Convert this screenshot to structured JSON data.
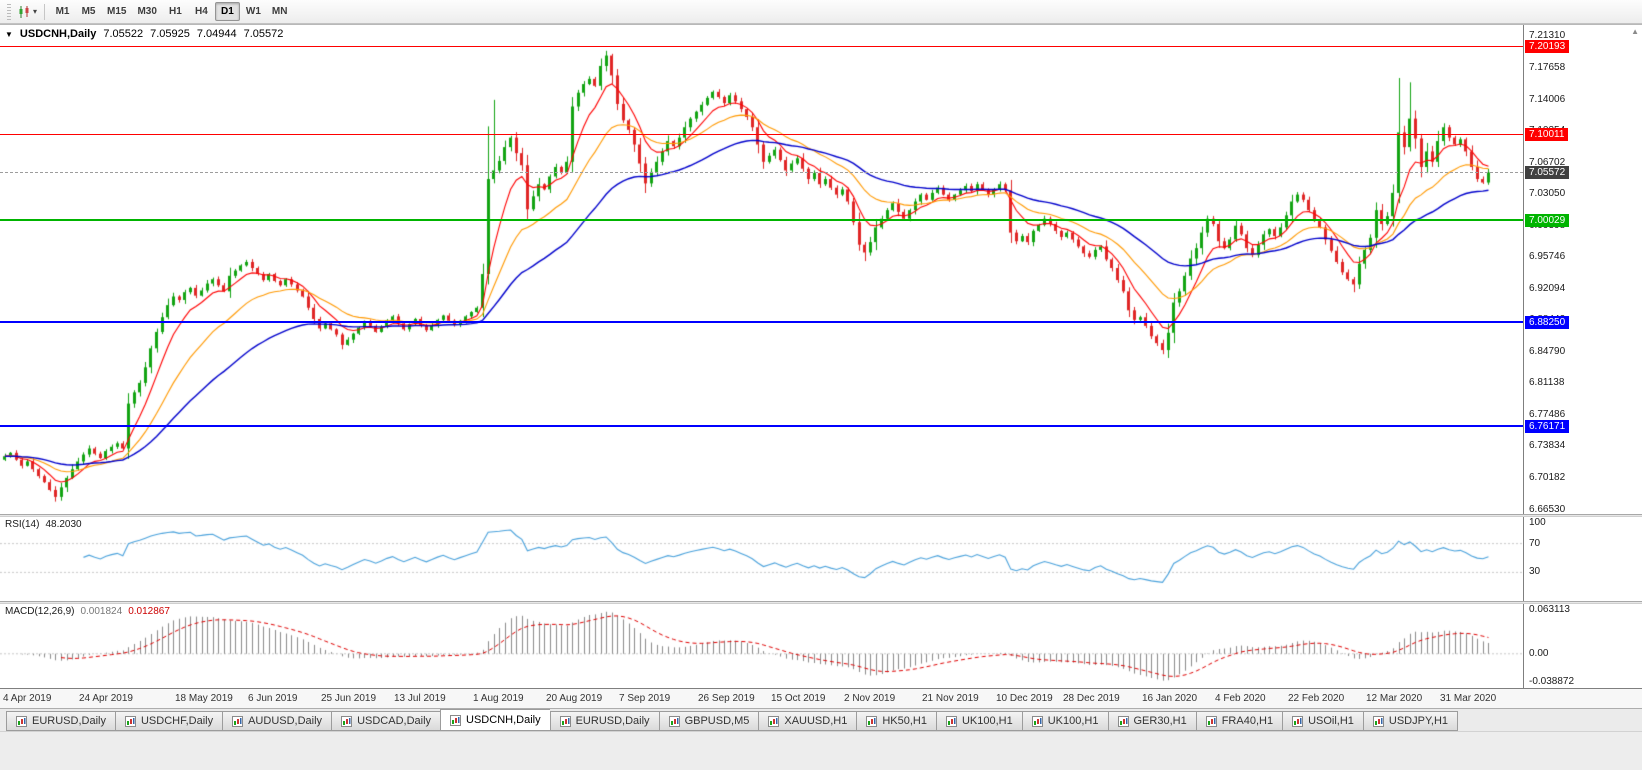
{
  "colors": {
    "candle_up": "#12a412",
    "candle_down": "#e02626",
    "ma_fast": "#ff0000",
    "ma_mid": "#ff9900",
    "ma_slow": "#0000cc",
    "rsi_line": "#4aa2dc",
    "rsi_level": "#c8c8c8",
    "macd_hist": "#8a8a8a",
    "macd_signal": "#e00000",
    "line_red": "#ff0000",
    "line_green": "#00b400",
    "line_blue": "#0000ff",
    "bid_tag": "#404040"
  },
  "icons": {
    "toolbar_chart": "candlestick-chart-icon",
    "toolbar_caret": "dropdown-caret-icon",
    "title_arrow": "collapse-arrow-icon",
    "tab_icon": "mini-chart-icon",
    "scroll_arrow": "chart-scroll-arrow-icon"
  },
  "toolbar": {
    "timeframes": [
      "M1",
      "M5",
      "M15",
      "M30",
      "H1",
      "H4",
      "D1",
      "W1",
      "MN"
    ],
    "active_timeframe": "D1"
  },
  "chart": {
    "title": {
      "arrow": "▼",
      "symbol": "USDCNH,Daily",
      "open": "7.05522",
      "high": "7.05925",
      "low": "7.04944",
      "close": "7.05572"
    },
    "price_axis": {
      "labels": [
        {
          "p": 7.2131,
          "t": "7.21310"
        },
        {
          "p": 7.17658,
          "t": "7.17658"
        },
        {
          "p": 7.14006,
          "t": "7.14006"
        },
        {
          "p": 7.10354,
          "t": "7.10354"
        },
        {
          "p": 7.06702,
          "t": "7.06702"
        },
        {
          "p": 7.0305,
          "t": "7.03050"
        },
        {
          "p": 6.99398,
          "t": "6.99398"
        },
        {
          "p": 6.95746,
          "t": "6.95746"
        },
        {
          "p": 6.92094,
          "t": "6.92094"
        },
        {
          "p": 6.88442,
          "t": "6.88442"
        },
        {
          "p": 6.8479,
          "t": "6.84790"
        },
        {
          "p": 6.81138,
          "t": "6.81138"
        },
        {
          "p": 6.77486,
          "t": "6.77486"
        },
        {
          "p": 6.73834,
          "t": "6.73834"
        },
        {
          "p": 6.70182,
          "t": "6.70182"
        },
        {
          "p": 6.6653,
          "t": "6.66530"
        }
      ]
    },
    "hlines": [
      {
        "price": 7.20193,
        "label": "7.20193",
        "color": "#ff0000",
        "thickness": 1
      },
      {
        "price": 7.10011,
        "label": "7.10011",
        "color": "#ff0000",
        "thickness": 1
      },
      {
        "price": 7.00029,
        "label": "7.00029",
        "color": "#00b400",
        "thickness": 2
      },
      {
        "price": 6.8825,
        "label": "6.88250",
        "color": "#0000ff",
        "thickness": 2
      },
      {
        "price": 6.76171,
        "label": "6.76171",
        "color": "#0000ff",
        "thickness": 2
      }
    ],
    "bid": {
      "price": 7.05572,
      "label": "7.05572"
    }
  },
  "rsi": {
    "label": "RSI(14)",
    "value": "48.2030",
    "levels": [
      {
        "label": "100",
        "value": 100
      },
      {
        "label": "70",
        "value": 70
      },
      {
        "label": "30",
        "value": 30
      }
    ]
  },
  "macd": {
    "label": "MACD(12,26,9)",
    "value_main": "0.001824",
    "value_signal": "0.012867",
    "axis": [
      {
        "label": "0.063113",
        "value": 0.063113
      },
      {
        "label": "0.00",
        "value": 0
      },
      {
        "label": "-0.038872",
        "value": -0.038872
      }
    ]
  },
  "date_axis": {
    "ticks": [
      {
        "i": 0,
        "label": "4 Apr 2019"
      },
      {
        "i": 14,
        "label": "24 Apr 2019"
      },
      {
        "i": 31,
        "label": "18 May 2019"
      },
      {
        "i": 44,
        "label": "6 Jun 2019"
      },
      {
        "i": 57,
        "label": "25 Jun 2019"
      },
      {
        "i": 70,
        "label": "13 Jul 2019"
      },
      {
        "i": 84,
        "label": "1 Aug 2019"
      },
      {
        "i": 97,
        "label": "20 Aug 2019"
      },
      {
        "i": 110,
        "label": "7 Sep 2019"
      },
      {
        "i": 124,
        "label": "26 Sep 2019"
      },
      {
        "i": 137,
        "label": "15 Oct 2019"
      },
      {
        "i": 150,
        "label": "2 Nov 2019"
      },
      {
        "i": 164,
        "label": "21 Nov 2019"
      },
      {
        "i": 177,
        "label": "10 Dec 2019"
      },
      {
        "i": 189,
        "label": "28 Dec 2019"
      },
      {
        "i": 203,
        "label": "16 Jan 2020"
      },
      {
        "i": 216,
        "label": "4 Feb 2020"
      },
      {
        "i": 229,
        "label": "22 Feb 2020"
      },
      {
        "i": 243,
        "label": "12 Mar 2020"
      },
      {
        "i": 256,
        "label": "31 Mar 2020"
      }
    ]
  },
  "tabs": [
    {
      "label": "EURUSD,Daily",
      "active": false
    },
    {
      "label": "USDCHF,Daily",
      "active": false
    },
    {
      "label": "AUDUSD,Daily",
      "active": false
    },
    {
      "label": "USDCAD,Daily",
      "active": false
    },
    {
      "label": "USDCNH,Daily",
      "active": true
    },
    {
      "label": "EURUSD,Daily",
      "active": false
    },
    {
      "label": "GBPUSD,M5",
      "active": false
    },
    {
      "label": "XAUUSD,H1",
      "active": false
    },
    {
      "label": "HK50,H1",
      "active": false
    },
    {
      "label": "UK100,H1",
      "active": false
    },
    {
      "label": "UK100,H1",
      "active": false
    },
    {
      "label": "GER30,H1",
      "active": false
    },
    {
      "label": "FRA40,H1",
      "active": false
    },
    {
      "label": "USOil,H1",
      "active": false
    },
    {
      "label": "USDJPY,H1",
      "active": false
    }
  ],
  "chart_data": {
    "type": "candlestick",
    "symbol": "USDCNH",
    "period": "Daily",
    "current_ohlc": [
      7.05522,
      7.05925,
      7.04944,
      7.05572
    ],
    "price_range": {
      "top": 7.2264,
      "bottom": 6.659
    },
    "indicators": {
      "rsi_period": 14,
      "macd": [
        12,
        26,
        9
      ]
    },
    "moving_averages": [
      {
        "period": 7,
        "color": "#ff0000"
      },
      {
        "period": 18,
        "color": "#ff9900"
      },
      {
        "period": 40,
        "color": "#0000cc"
      }
    ],
    "candles": {
      "first_open": 6.723,
      "closes": [
        6.727,
        6.731,
        6.723,
        6.716,
        6.721,
        6.712,
        6.704,
        6.697,
        6.688,
        6.68,
        6.691,
        6.702,
        6.712,
        6.721,
        6.729,
        6.736,
        6.73,
        6.725,
        6.733,
        6.738,
        6.742,
        6.736,
        6.788,
        6.801,
        6.812,
        6.83,
        6.852,
        6.871,
        6.888,
        6.902,
        6.912,
        6.908,
        6.917,
        6.922,
        6.913,
        6.919,
        6.927,
        6.932,
        6.925,
        6.918,
        6.936,
        6.942,
        6.948,
        6.952,
        6.945,
        6.938,
        6.931,
        6.938,
        6.93,
        6.925,
        6.932,
        6.926,
        6.919,
        6.912,
        6.899,
        6.886,
        6.875,
        6.881,
        6.874,
        6.868,
        6.856,
        6.862,
        6.869,
        6.876,
        6.883,
        6.878,
        6.871,
        6.877,
        6.884,
        6.889,
        6.881,
        6.874,
        6.88,
        6.886,
        6.879,
        6.873,
        6.879,
        6.885,
        6.89,
        6.884,
        6.879,
        6.884,
        6.889,
        6.894,
        6.899,
        6.938,
        7.048,
        7.058,
        7.069,
        7.085,
        7.096,
        7.078,
        7.064,
        7.013,
        7.028,
        7.042,
        7.036,
        7.051,
        7.062,
        7.056,
        7.068,
        7.132,
        7.148,
        7.158,
        7.164,
        7.156,
        7.179,
        7.191,
        7.168,
        7.135,
        7.116,
        7.105,
        7.088,
        7.066,
        7.043,
        7.056,
        7.068,
        7.08,
        7.092,
        7.086,
        7.096,
        7.108,
        7.118,
        7.126,
        7.134,
        7.142,
        7.149,
        7.143,
        7.136,
        7.145,
        7.138,
        7.129,
        7.12,
        7.108,
        7.088,
        7.068,
        7.075,
        7.082,
        7.07,
        7.058,
        7.066,
        7.072,
        7.06,
        7.048,
        7.055,
        7.042,
        7.048,
        7.038,
        7.03,
        7.036,
        7.022,
        6.998,
        6.972,
        6.963,
        6.975,
        6.992,
        7.002,
        7.012,
        7.02,
        7.01,
        7.002,
        7.012,
        7.022,
        7.03,
        7.024,
        7.032,
        7.038,
        7.03,
        7.024,
        7.03,
        7.035,
        7.04,
        7.034,
        7.042,
        7.036,
        7.03,
        7.036,
        7.042,
        7.035,
        6.986,
        6.976,
        6.982,
        6.975,
        6.988,
        6.995,
        7.002,
        6.996,
        6.988,
        6.981,
        6.986,
        6.978,
        6.97,
        6.962,
        6.958,
        6.966,
        6.97,
        6.955,
        6.945,
        6.931,
        6.918,
        6.896,
        6.885,
        6.888,
        6.878,
        6.866,
        6.858,
        6.85,
        6.87,
        6.905,
        6.918,
        6.936,
        6.956,
        6.968,
        6.986,
        7.002,
        6.996,
        6.976,
        6.968,
        6.978,
        6.994,
        6.984,
        6.968,
        6.96,
        6.972,
        6.984,
        6.99,
        6.982,
        6.992,
        7.006,
        7.022,
        7.03,
        7.024,
        7.012,
        7.0,
        6.992,
        6.978,
        6.965,
        6.952,
        6.94,
        6.932,
        6.926,
        6.95,
        6.966,
        6.98,
        7.012,
        6.996,
        7.005,
        7.032,
        7.102,
        7.085,
        7.118,
        7.095,
        7.062,
        7.08,
        7.068,
        7.092,
        7.108,
        7.096,
        7.088,
        7.094,
        7.08,
        7.062,
        7.048,
        7.044,
        7.0557
      ],
      "high_overrides": {
        "86": 7.109,
        "87": 7.1397,
        "107": 7.1965,
        "248": 7.165,
        "250": 7.16
      },
      "low_overrides": {
        "9": 6.6745,
        "153": 6.953,
        "206": 6.8452,
        "240": 6.917
      }
    }
  }
}
